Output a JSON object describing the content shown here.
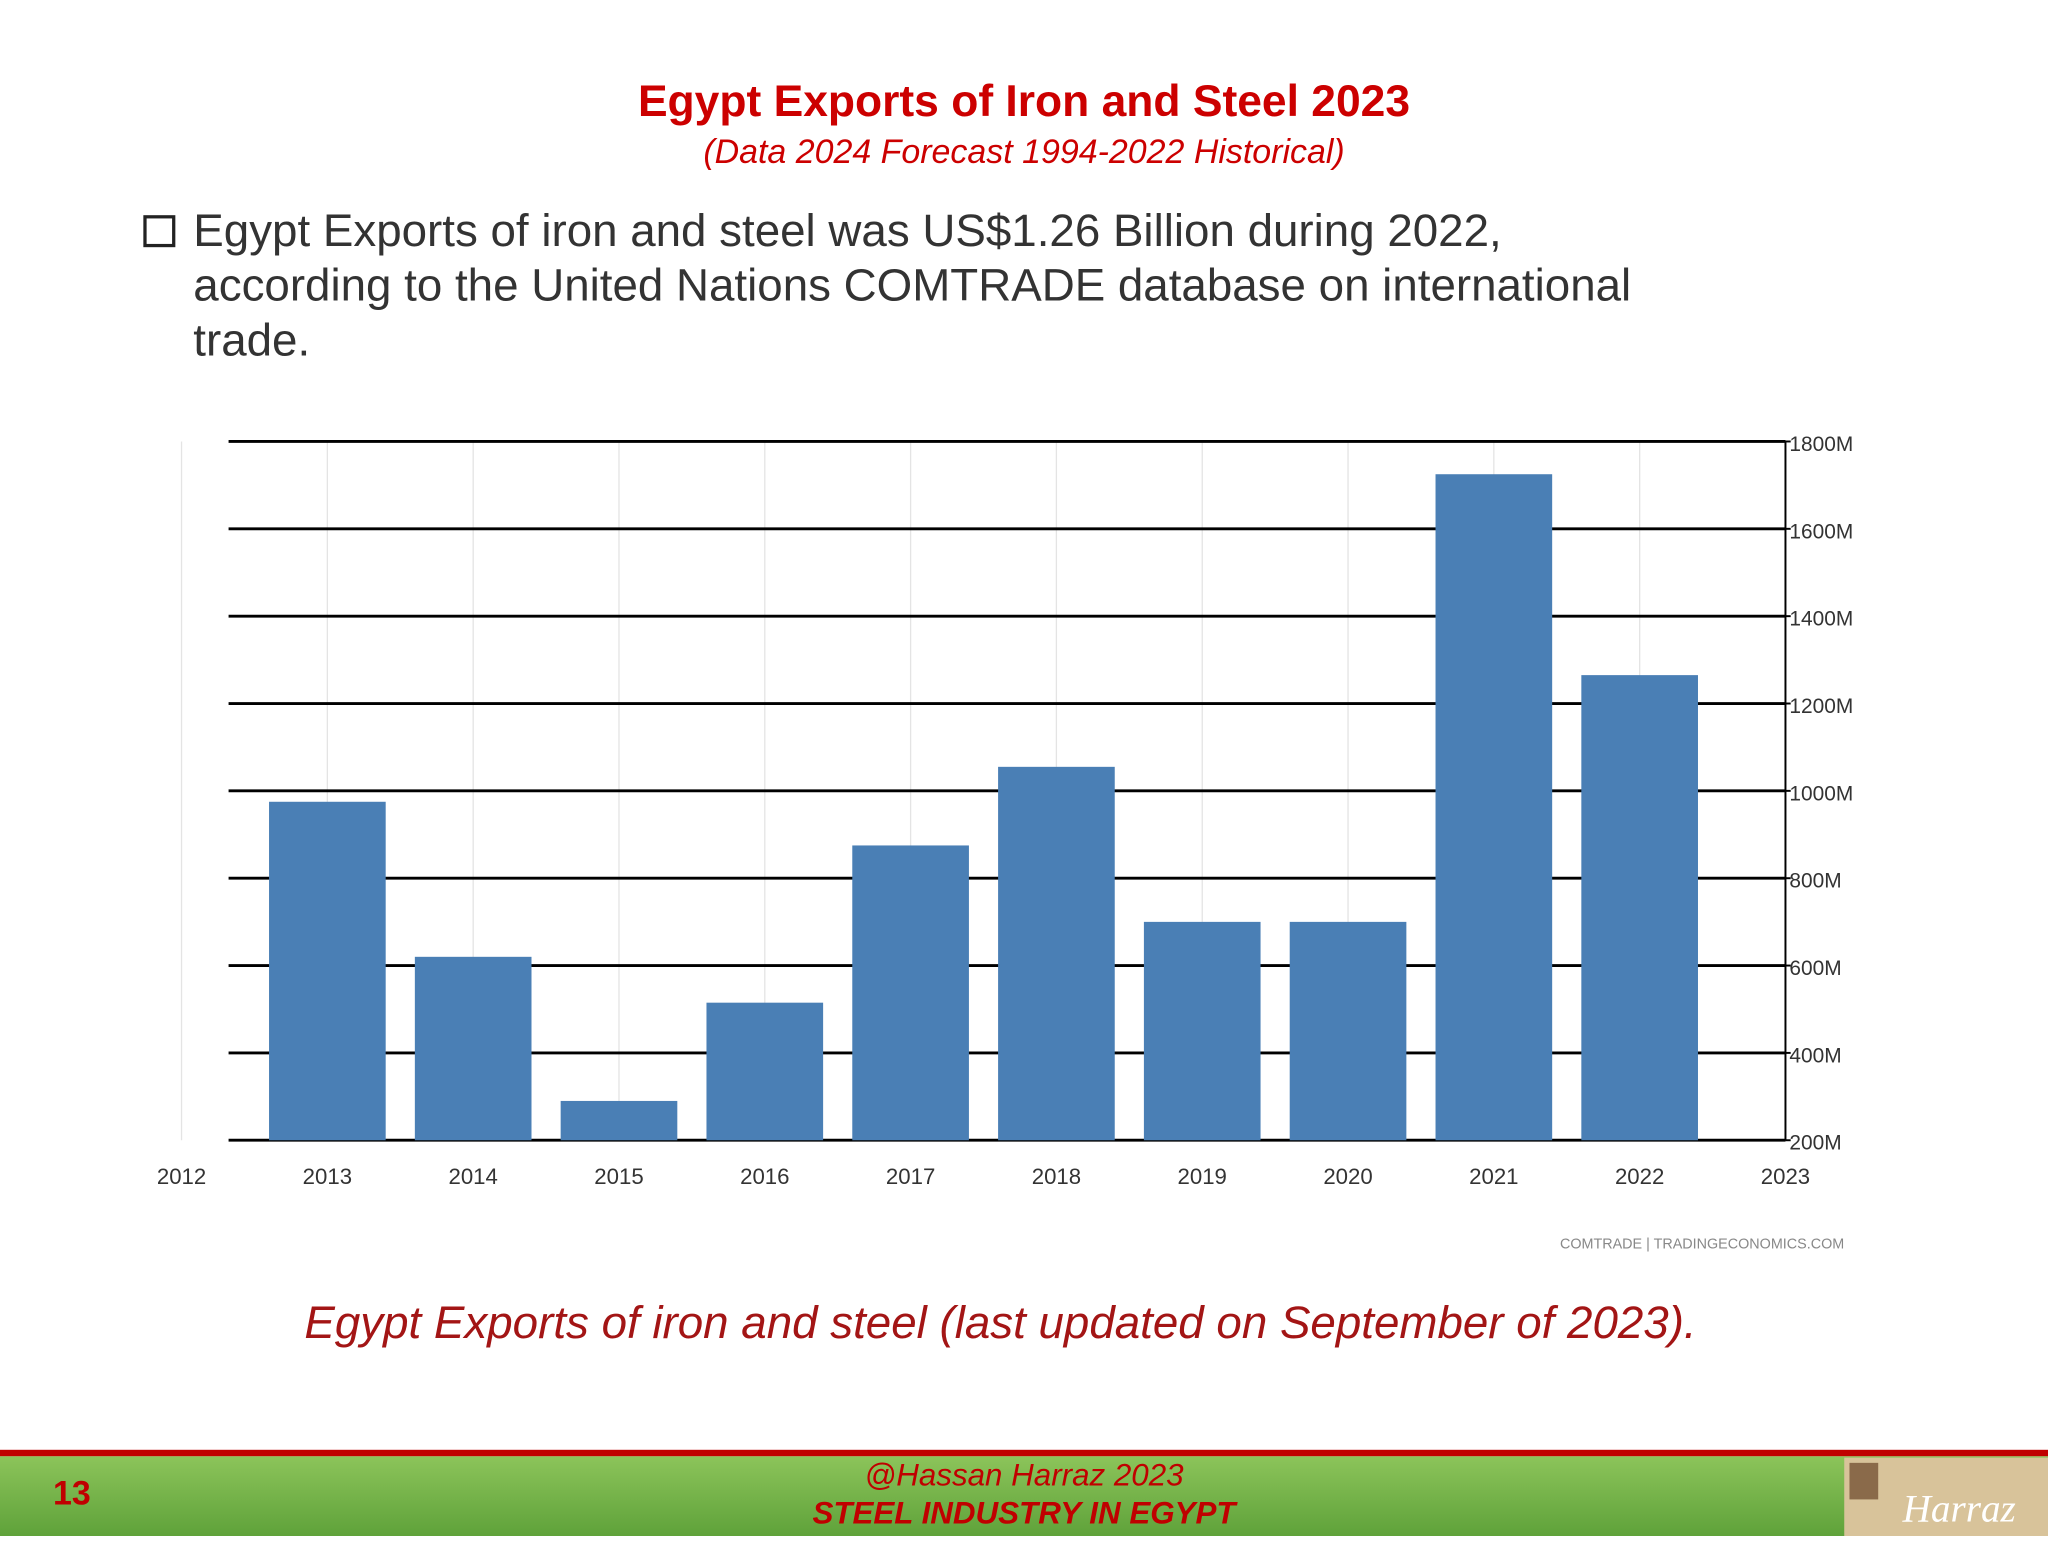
{
  "slide_title": "Egypt Exports of Iron and Steel 2023",
  "slide_subtitle": "(Data 2024 Forecast 1994-2022 Historical)",
  "bullet_lines": [
    "Egypt Exports of iron and steel was US$1.26 Billion during 2022,",
    "according to the United Nations COMTRADE database on international",
    "trade."
  ],
  "chart_data": {
    "type": "bar",
    "x": [
      2013,
      2014,
      2015,
      2016,
      2017,
      2018,
      2019,
      2020,
      2021,
      2022
    ],
    "values": [
      975,
      620,
      290,
      515,
      875,
      1055,
      700,
      700,
      1725,
      1265
    ],
    "color": "#4a7fb5",
    "xlim": [
      2012,
      2023
    ],
    "xticks": [
      2012,
      2013,
      2014,
      2015,
      2016,
      2017,
      2018,
      2019,
      2020,
      2021,
      2022,
      2023
    ],
    "ylim": [
      200,
      1800
    ],
    "yticks": [
      {
        "value": 200,
        "label": "200M"
      },
      {
        "value": 400,
        "label": "400M"
      },
      {
        "value": 600,
        "label": "600M"
      },
      {
        "value": 800,
        "label": "800M"
      },
      {
        "value": 1000,
        "label": "1000M"
      },
      {
        "value": 1200,
        "label": "1200M"
      },
      {
        "value": 1400,
        "label": "1400M"
      },
      {
        "value": 1600,
        "label": "1600M"
      },
      {
        "value": 1800,
        "label": "1800M"
      }
    ],
    "grid": true,
    "source": "COMTRADE | TRADINGECONOMICS.COM"
  },
  "caption": "Egypt Exports of iron and steel (last updated on September of 2023).",
  "footer": {
    "page_number": "13",
    "author": "@Hassan Harraz 2023",
    "subtitle": "STEEL INDUSTRY IN EGYPT",
    "logo": "Harraz"
  }
}
